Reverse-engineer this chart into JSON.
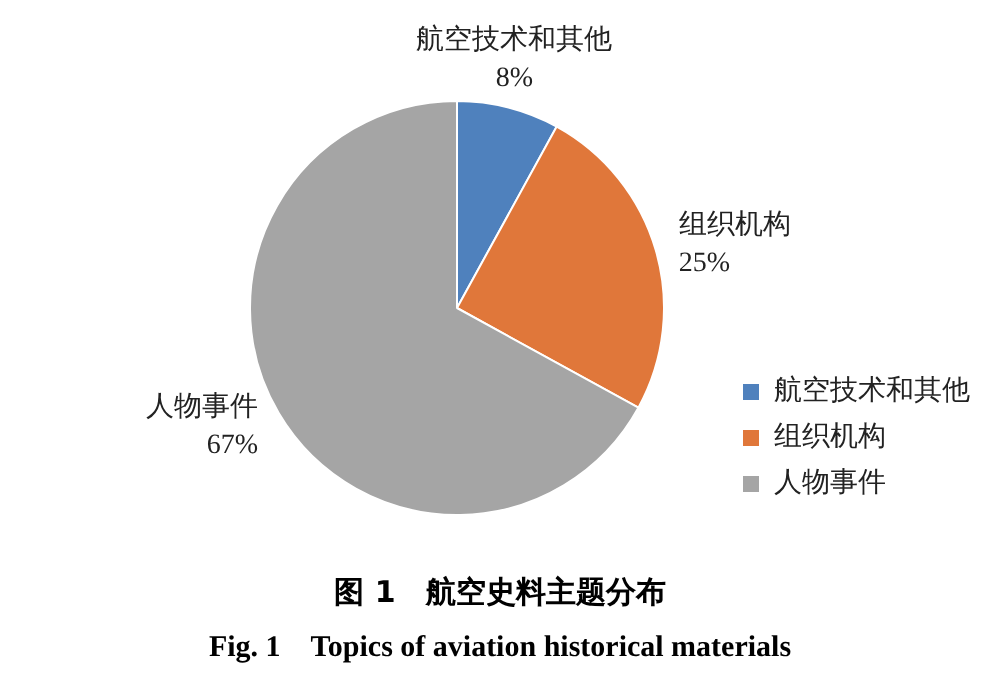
{
  "chart_data": {
    "type": "pie",
    "title": "图 1　航空史料主题分布",
    "subtitle": "Fig. 1　Topics of aviation historical materials",
    "categories": [
      "航空技术和其他",
      "组织机构",
      "人物事件"
    ],
    "values": [
      8,
      25,
      67
    ],
    "colors": [
      "#4f81bd",
      "#e0773a",
      "#a5a5a5"
    ],
    "value_labels": [
      "8%",
      "25%",
      "67%"
    ],
    "legend": "right"
  }
}
